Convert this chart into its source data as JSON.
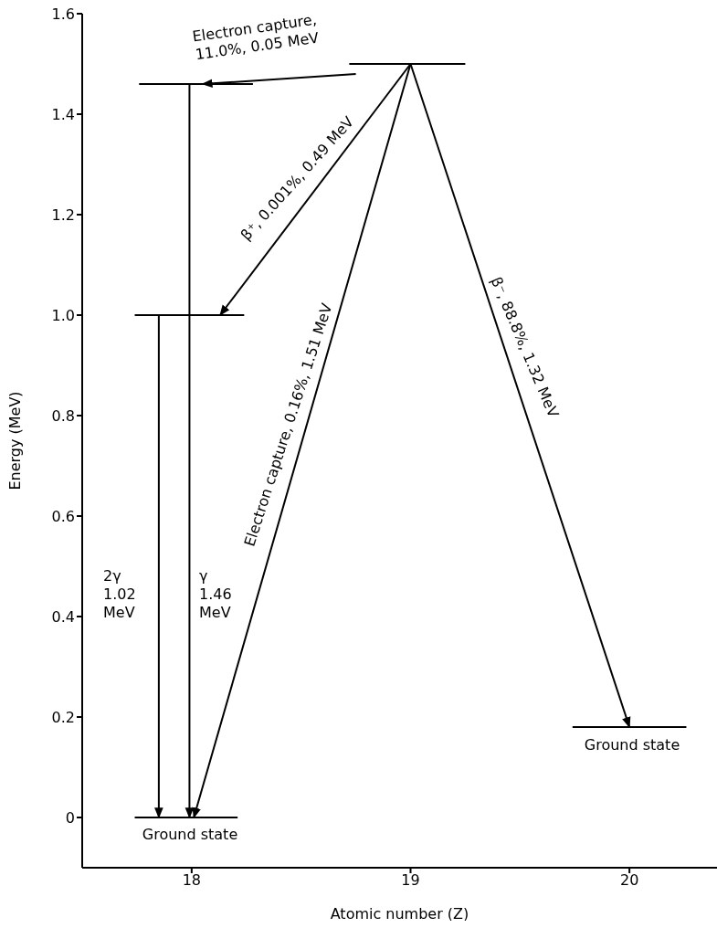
{
  "chart_data": {
    "type": "line",
    "xlabel": "Atomic number (Z)",
    "ylabel": "Energy (MeV)",
    "xlim": [
      17.5,
      20.4
    ],
    "xticks": [
      18,
      19,
      20
    ],
    "ylim": [
      -0.1,
      1.6
    ],
    "yticks": [
      0,
      0.2,
      0.4,
      0.6,
      0.8,
      {
        "value": 1,
        "label": "1.0"
      },
      1.2,
      1.4,
      1.6
    ],
    "grid": false,
    "marker": "none",
    "series": [
      {
        "color": "#000000",
        "x": [
          18.72,
          19.25
        ],
        "values": [
          1.5,
          1.5
        ]
      },
      {
        "color": "#000000",
        "x": [
          17.76,
          18.28
        ],
        "values": [
          1.46,
          1.46
        ]
      },
      {
        "color": "#000000",
        "x": [
          17.74,
          18.24
        ],
        "values": [
          1.0,
          1.0
        ]
      },
      {
        "color": "#000000",
        "x": [
          17.74,
          18.21
        ],
        "values": [
          0,
          0
        ]
      },
      {
        "color": "#000000",
        "x": [
          19.74,
          20.26
        ],
        "values": [
          0.18,
          0.18
        ]
      },
      {
        "color": "#000000",
        "x": [
          18.75,
          18.05
        ],
        "values": [
          1.48,
          1.46
        ]
      },
      {
        "color": "#000000",
        "x": [
          19.0,
          18.13
        ],
        "values": [
          1.5,
          1.0
        ]
      },
      {
        "color": "#000000",
        "x": [
          19.0,
          18.01
        ],
        "values": [
          1.5,
          0
        ]
      },
      {
        "color": "#000000",
        "x": [
          19.0,
          20.0
        ],
        "values": [
          1.5,
          0.18
        ]
      },
      {
        "color": "#000000",
        "x": [
          17.99,
          17.99
        ],
        "values": [
          1.46,
          0
        ]
      },
      {
        "color": "#000000",
        "x": [
          17.85,
          17.85
        ],
        "values": [
          1.0,
          0
        ]
      }
    ],
    "annotations": [
      "Electron capture,\n11.0%, 0.05 MeV",
      "β⁺, 0.001%, 0.49 MeV",
      "Electron capture, 0.16%, 1.51 MeV",
      "β⁻, 88.8%, 1.32 MeV",
      "2γ\n1.02\nMeV",
      "γ\n1.46\nMeV",
      "Ground state",
      "Ground state"
    ]
  }
}
